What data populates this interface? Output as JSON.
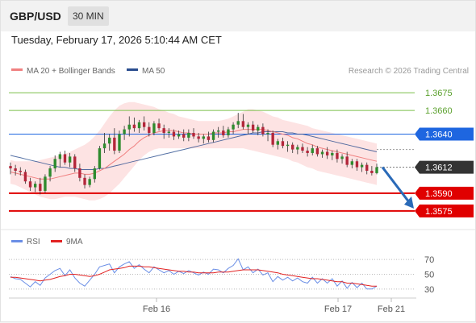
{
  "header": {
    "pair": "GBP/USD",
    "timeframe": "30 MIN",
    "datetime": "Tuesday, February 17, 2026 5:10:44 AM CET"
  },
  "legend": {
    "ma20_label": "MA 20 + Bollinger Bands",
    "ma50_label": "MA 50",
    "research": "Research © 2026 Trading Central"
  },
  "rsi_legend": {
    "rsi_label": "RSI",
    "ma9_label": "9MA"
  },
  "colors": {
    "ma20": "#f08080",
    "ma50": "#2a4d8f",
    "bollinger_fill": "#fde3e3",
    "candle_up": "#2e8b2e",
    "candle_down": "#b3263a",
    "resistance": "#7bbf4a",
    "support": "#e00000",
    "pivot": "#1e66e0",
    "last_price": "#333333",
    "rsi": "#6a8ee6",
    "rsi_ma": "#e22222",
    "forecast_arrow": "#2a6ab8"
  },
  "chart_data": [
    {
      "type": "candlestick",
      "ylim": [
        1.3562,
        1.3688
      ],
      "x_ticks": [
        "Feb 16",
        "Feb 17",
        "Feb 21"
      ],
      "levels": [
        {
          "value": 1.3675,
          "label": "1.3675",
          "kind": "resistance"
        },
        {
          "value": 1.366,
          "label": "1.3660",
          "kind": "resistance"
        },
        {
          "value": 1.364,
          "label": "1.3640",
          "kind": "pivot"
        },
        {
          "value": 1.3612,
          "label": "1.3612",
          "kind": "last"
        },
        {
          "value": 1.359,
          "label": "1.3590",
          "kind": "support"
        },
        {
          "value": 1.3575,
          "label": "1.3575",
          "kind": "support"
        }
      ],
      "forecast_target": 1.3575,
      "ohlc": [
        [
          1.3613,
          1.3616,
          1.3606,
          1.3611
        ],
        [
          1.3611,
          1.3614,
          1.3605,
          1.3609
        ],
        [
          1.3609,
          1.3612,
          1.3605,
          1.3608
        ],
        [
          1.3608,
          1.361,
          1.3598,
          1.36
        ],
        [
          1.36,
          1.3603,
          1.3592,
          1.3595
        ],
        [
          1.3595,
          1.36,
          1.3591,
          1.3598
        ],
        [
          1.3598,
          1.3603,
          1.3589,
          1.3592
        ],
        [
          1.3592,
          1.3606,
          1.359,
          1.3604
        ],
        [
          1.3604,
          1.3613,
          1.36,
          1.3611
        ],
        [
          1.3611,
          1.3622,
          1.3608,
          1.3619
        ],
        [
          1.3619,
          1.3625,
          1.3612,
          1.3623
        ],
        [
          1.3623,
          1.3626,
          1.3614,
          1.3616
        ],
        [
          1.3616,
          1.3624,
          1.3612,
          1.3621
        ],
        [
          1.3621,
          1.3623,
          1.3608,
          1.3611
        ],
        [
          1.3611,
          1.3615,
          1.36,
          1.3603
        ],
        [
          1.3603,
          1.3606,
          1.3594,
          1.3597
        ],
        [
          1.3597,
          1.3604,
          1.3595,
          1.3602
        ],
        [
          1.3602,
          1.3613,
          1.3599,
          1.3611
        ],
        [
          1.3611,
          1.363,
          1.361,
          1.3628
        ],
        [
          1.3628,
          1.3641,
          1.3624,
          1.3632
        ],
        [
          1.3632,
          1.364,
          1.3626,
          1.3637
        ],
        [
          1.3637,
          1.3645,
          1.3623,
          1.3626
        ],
        [
          1.3626,
          1.3643,
          1.3624,
          1.364
        ],
        [
          1.364,
          1.3647,
          1.3635,
          1.3644
        ],
        [
          1.3644,
          1.3655,
          1.3638,
          1.3648
        ],
        [
          1.3648,
          1.3654,
          1.3642,
          1.3645
        ],
        [
          1.3645,
          1.3652,
          1.3641,
          1.365
        ],
        [
          1.365,
          1.3655,
          1.3643,
          1.3646
        ],
        [
          1.3646,
          1.365,
          1.3638,
          1.3641
        ],
        [
          1.3641,
          1.3651,
          1.3639,
          1.3649
        ],
        [
          1.3649,
          1.3653,
          1.3643,
          1.3645
        ],
        [
          1.3645,
          1.3648,
          1.3636,
          1.3641
        ],
        [
          1.3641,
          1.3645,
          1.3637,
          1.3642
        ],
        [
          1.3642,
          1.3644,
          1.3635,
          1.3638
        ],
        [
          1.3638,
          1.3643,
          1.3636,
          1.364
        ],
        [
          1.364,
          1.3644,
          1.3634,
          1.3637
        ],
        [
          1.3637,
          1.3644,
          1.3634,
          1.3641
        ],
        [
          1.3641,
          1.3645,
          1.3636,
          1.3638
        ],
        [
          1.3638,
          1.3641,
          1.3633,
          1.3636
        ],
        [
          1.3636,
          1.364,
          1.3632,
          1.3638
        ],
        [
          1.3638,
          1.3642,
          1.3633,
          1.3635
        ],
        [
          1.3635,
          1.3644,
          1.3633,
          1.3642
        ],
        [
          1.3642,
          1.3646,
          1.3637,
          1.3643
        ],
        [
          1.3643,
          1.3647,
          1.3637,
          1.3639
        ],
        [
          1.3639,
          1.3646,
          1.3637,
          1.3644
        ],
        [
          1.3644,
          1.365,
          1.364,
          1.3648
        ],
        [
          1.3648,
          1.3658,
          1.3645,
          1.3651
        ],
        [
          1.3651,
          1.3657,
          1.3644,
          1.3646
        ],
        [
          1.3646,
          1.365,
          1.364,
          1.3648
        ],
        [
          1.3648,
          1.3651,
          1.3641,
          1.3643
        ],
        [
          1.3643,
          1.3648,
          1.3639,
          1.3646
        ],
        [
          1.3646,
          1.3649,
          1.3638,
          1.364
        ],
        [
          1.364,
          1.3644,
          1.3634,
          1.3641
        ],
        [
          1.3641,
          1.3643,
          1.3629,
          1.3631
        ],
        [
          1.3631,
          1.3636,
          1.3627,
          1.3634
        ],
        [
          1.3634,
          1.3637,
          1.3628,
          1.363
        ],
        [
          1.363,
          1.3634,
          1.3625,
          1.3631
        ],
        [
          1.3631,
          1.3633,
          1.3624,
          1.3627
        ],
        [
          1.3627,
          1.3631,
          1.3623,
          1.3629
        ],
        [
          1.3629,
          1.3632,
          1.3624,
          1.3626
        ],
        [
          1.3626,
          1.3629,
          1.3621,
          1.3624
        ],
        [
          1.3624,
          1.3631,
          1.3622,
          1.3628
        ],
        [
          1.3628,
          1.363,
          1.3621,
          1.3623
        ],
        [
          1.3623,
          1.3627,
          1.362,
          1.3625
        ],
        [
          1.3625,
          1.3629,
          1.3619,
          1.3622
        ],
        [
          1.3622,
          1.3626,
          1.3618,
          1.3624
        ],
        [
          1.3624,
          1.3627,
          1.3616,
          1.3619
        ],
        [
          1.3619,
          1.3623,
          1.3615,
          1.3621
        ],
        [
          1.3621,
          1.3625,
          1.3612,
          1.3614
        ],
        [
          1.3614,
          1.3619,
          1.3611,
          1.3617
        ],
        [
          1.3617,
          1.3619,
          1.3609,
          1.3612
        ],
        [
          1.3612,
          1.3616,
          1.3608,
          1.3614
        ],
        [
          1.3614,
          1.3616,
          1.3606,
          1.3609
        ],
        [
          1.3609,
          1.3613,
          1.3605,
          1.3607
        ],
        [
          1.3607,
          1.3615,
          1.3606,
          1.3612
        ]
      ],
      "ma20": [
        1.3608,
        1.3607,
        1.3606,
        1.3605,
        1.3604,
        1.3603,
        1.3602,
        1.3602,
        1.3602,
        1.3603,
        1.3604,
        1.3605,
        1.3606,
        1.3607,
        1.3607,
        1.3606,
        1.3606,
        1.3607,
        1.3609,
        1.3611,
        1.3614,
        1.3617,
        1.362,
        1.3623,
        1.3627,
        1.363,
        1.3634,
        1.3637,
        1.3639,
        1.3641,
        1.3642,
        1.3643,
        1.3643,
        1.3643,
        1.3642,
        1.3641,
        1.3641,
        1.364,
        1.364,
        1.364,
        1.364,
        1.3641,
        1.3641,
        1.3641,
        1.3642,
        1.3642,
        1.3643,
        1.3644,
        1.3644,
        1.3644,
        1.3644,
        1.3644,
        1.3643,
        1.3642,
        1.3641,
        1.364,
        1.3639,
        1.3637,
        1.3636,
        1.3634,
        1.3632,
        1.3631,
        1.3629,
        1.3628,
        1.3627,
        1.3626,
        1.3625,
        1.3624,
        1.3623,
        1.3622,
        1.3621,
        1.362,
        1.3619,
        1.3618,
        1.3617
      ],
      "ma50": [
        1.3622,
        1.3621,
        1.362,
        1.3619,
        1.3618,
        1.3617,
        1.3616,
        1.3615,
        1.3614,
        1.3613,
        1.3612,
        1.3612,
        1.3611,
        1.3611,
        1.361,
        1.361,
        1.361,
        1.361,
        1.3611,
        1.3611,
        1.3612,
        1.3613,
        1.3614,
        1.3615,
        1.3616,
        1.3617,
        1.3618,
        1.3619,
        1.362,
        1.3621,
        1.3622,
        1.3623,
        1.3624,
        1.3625,
        1.3626,
        1.3627,
        1.3628,
        1.3629,
        1.363,
        1.3631,
        1.3632,
        1.3633,
        1.3634,
        1.3635,
        1.3636,
        1.3637,
        1.3638,
        1.3639,
        1.364,
        1.3641,
        1.3641,
        1.3642,
        1.3642,
        1.3642,
        1.3642,
        1.3642,
        1.3641,
        1.3641,
        1.364,
        1.364,
        1.3639,
        1.3638,
        1.3637,
        1.3636,
        1.3635,
        1.3634,
        1.3633,
        1.3632,
        1.3631,
        1.363,
        1.3629,
        1.3628,
        1.3627,
        1.3626,
        1.3625
      ],
      "bb_upper": [
        1.3618,
        1.3617,
        1.3617,
        1.3617,
        1.3617,
        1.3617,
        1.3618,
        1.3619,
        1.362,
        1.3621,
        1.3622,
        1.3623,
        1.3625,
        1.3627,
        1.3629,
        1.3631,
        1.3634,
        1.3638,
        1.3643,
        1.3649,
        1.3655,
        1.366,
        1.3664,
        1.3666,
        1.3667,
        1.3667,
        1.3666,
        1.3665,
        1.3664,
        1.3663,
        1.3661,
        1.366,
        1.3658,
        1.3657,
        1.3655,
        1.3654,
        1.3653,
        1.3652,
        1.3651,
        1.3651,
        1.3651,
        1.3651,
        1.3651,
        1.3652,
        1.3653,
        1.3655,
        1.3657,
        1.3659,
        1.3661,
        1.3661,
        1.366,
        1.3659,
        1.3657,
        1.3655,
        1.3654,
        1.3652,
        1.3651,
        1.365,
        1.3649,
        1.3648,
        1.3647,
        1.3645,
        1.3644,
        1.3643,
        1.3642,
        1.3641,
        1.364,
        1.3639,
        1.3638,
        1.3637,
        1.3636,
        1.3635,
        1.3634,
        1.3633,
        1.3632
      ],
      "bb_lower": [
        1.3598,
        1.3597,
        1.3595,
        1.3593,
        1.3591,
        1.3589,
        1.3587,
        1.3586,
        1.3585,
        1.3585,
        1.3586,
        1.3587,
        1.3587,
        1.3587,
        1.3586,
        1.3585,
        1.3584,
        1.3584,
        1.3585,
        1.3587,
        1.359,
        1.3594,
        1.3598,
        1.3603,
        1.3608,
        1.3613,
        1.3618,
        1.3622,
        1.3625,
        1.3627,
        1.3628,
        1.3628,
        1.3628,
        1.3628,
        1.3628,
        1.3628,
        1.3628,
        1.3628,
        1.3628,
        1.3628,
        1.3628,
        1.3628,
        1.3628,
        1.3628,
        1.3628,
        1.3628,
        1.3628,
        1.3628,
        1.3627,
        1.3626,
        1.3625,
        1.3624,
        1.3623,
        1.3622,
        1.3621,
        1.362,
        1.3619,
        1.3617,
        1.3616,
        1.3614,
        1.3612,
        1.3611,
        1.3609,
        1.3608,
        1.3607,
        1.3606,
        1.3605,
        1.3604,
        1.3603,
        1.3602,
        1.3601,
        1.36,
        1.3599,
        1.3598,
        1.3597
      ]
    },
    {
      "type": "line",
      "ylim": [
        20,
        80
      ],
      "y_ticks": [
        70,
        50,
        30
      ],
      "rsi": [
        47,
        44,
        43,
        38,
        33,
        40,
        35,
        45,
        50,
        55,
        58,
        48,
        56,
        45,
        38,
        34,
        42,
        50,
        60,
        62,
        64,
        52,
        60,
        64,
        67,
        58,
        63,
        57,
        52,
        60,
        56,
        52,
        55,
        50,
        54,
        51,
        55,
        52,
        49,
        53,
        50,
        57,
        56,
        52,
        58,
        62,
        71,
        56,
        60,
        52,
        57,
        49,
        52,
        40,
        47,
        42,
        46,
        41,
        45,
        40,
        38,
        46,
        38,
        44,
        38,
        44,
        34,
        41,
        31,
        39,
        32,
        38,
        30,
        30,
        34
      ],
      "rsi_ma": [
        46,
        46,
        45,
        44,
        43,
        42,
        41,
        42,
        43,
        45,
        47,
        48,
        50,
        50,
        49,
        48,
        47,
        48,
        50,
        53,
        56,
        57,
        58,
        59,
        61,
        61,
        61,
        60,
        60,
        59,
        58,
        57,
        56,
        55,
        54,
        54,
        53,
        53,
        52,
        52,
        52,
        52,
        53,
        53,
        53,
        54,
        55,
        56,
        56,
        56,
        56,
        55,
        54,
        53,
        52,
        50,
        49,
        48,
        47,
        46,
        45,
        44,
        44,
        43,
        42,
        41,
        40,
        40,
        38,
        38,
        37,
        36,
        35,
        34,
        34
      ]
    }
  ]
}
